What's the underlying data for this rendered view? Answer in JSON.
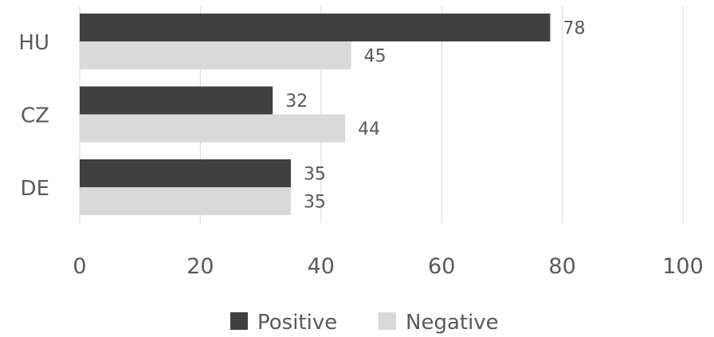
{
  "chart_data": {
    "type": "bar",
    "orientation": "horizontal",
    "categories": [
      "HU",
      "CZ",
      "DE"
    ],
    "series": [
      {
        "name": "Positive",
        "values": [
          78,
          32,
          35
        ],
        "color": "#404040"
      },
      {
        "name": "Negative",
        "values": [
          45,
          44,
          35
        ],
        "color": "#d9d9d9"
      }
    ],
    "xlim": [
      0,
      100
    ],
    "xticks": [
      "0",
      "20",
      "40",
      "60",
      "80",
      "100"
    ],
    "grid": true,
    "legend_position": "bottom",
    "data_labels": true
  }
}
